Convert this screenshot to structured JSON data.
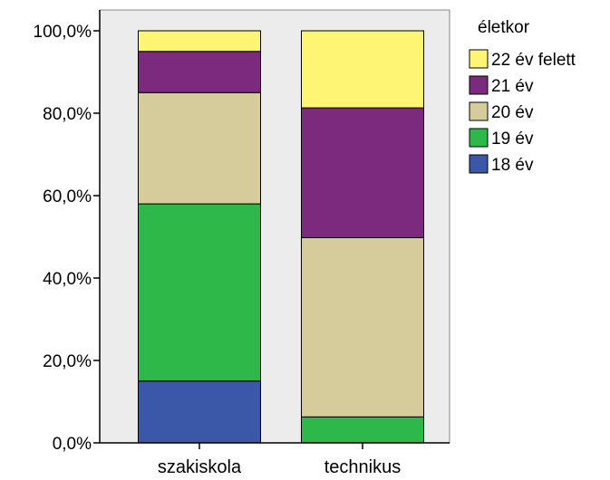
{
  "chart_data": {
    "type": "bar",
    "stacked": true,
    "percent": true,
    "categories": [
      "szakiskola",
      "technikus"
    ],
    "series": [
      {
        "name": "18 év",
        "color": "#3b57a8",
        "values": [
          15.0,
          0.0
        ]
      },
      {
        "name": "19 év",
        "color": "#2eb84a",
        "values": [
          43.0,
          6.3
        ]
      },
      {
        "name": "20 év",
        "color": "#d6cc9b",
        "values": [
          27.0,
          43.5
        ]
      },
      {
        "name": "21 év",
        "color": "#7b2a7e",
        "values": [
          10.0,
          31.5
        ]
      },
      {
        "name": "22 év felett",
        "color": "#fdf573",
        "values": [
          5.0,
          18.7
        ]
      }
    ],
    "yticks": [
      "0,0%",
      "20,0%",
      "40,0%",
      "60,0%",
      "80,0%",
      "100,0%"
    ],
    "ylim": [
      0,
      100
    ],
    "legend_title": "életkor",
    "legend_order": [
      "22 év felett",
      "21 év",
      "20 év",
      "19 év",
      "18 év"
    ],
    "legend_position": "right",
    "plot_background": "#ececec",
    "grid": false
  }
}
